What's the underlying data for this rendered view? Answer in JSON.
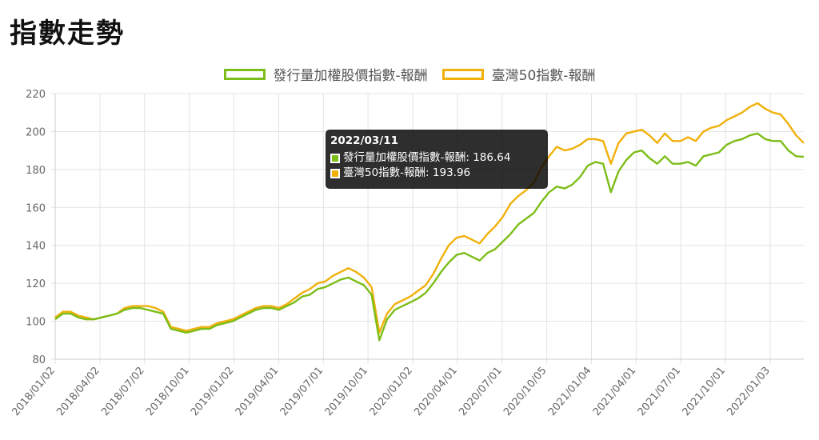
{
  "page": {
    "title": "指數走勢"
  },
  "chart_data": {
    "type": "line",
    "yticks": [
      80,
      100,
      120,
      140,
      160,
      180,
      200,
      220
    ],
    "ylim": [
      80,
      220
    ],
    "x_tick_labels": [
      "2018/01/02",
      "2018/04/02",
      "2018/07/02",
      "2018/10/01",
      "2019/01/02",
      "2019/04/01",
      "2019/07/01",
      "2019/10/01",
      "2020/01/02",
      "2020/04/01",
      "2020/07/01",
      "2020/10/05",
      "2021/01/04",
      "2021/04/01",
      "2021/07/01",
      "2021/10/01",
      "2022/01/03"
    ],
    "grid": true,
    "legend_position": "top-center",
    "series": [
      {
        "name": "發行量加權股價指數-報酬",
        "color": "#7cbd18",
        "values": [
          101,
          104,
          104,
          102,
          101,
          101,
          102,
          103,
          104,
          106,
          107,
          107,
          106,
          105,
          104,
          96,
          95,
          94,
          95,
          96,
          96,
          98,
          99,
          100,
          102,
          104,
          106,
          107,
          107,
          106,
          108,
          110,
          113,
          114,
          117,
          118,
          120,
          122,
          123,
          121,
          119,
          114,
          90,
          101,
          106,
          108,
          110,
          112,
          115,
          120,
          126,
          131,
          135,
          136,
          134,
          132,
          136,
          138,
          142,
          146,
          151,
          154,
          157,
          163,
          168,
          171,
          170,
          172,
          176,
          182,
          184,
          183,
          168,
          179,
          185,
          189,
          190,
          186,
          183,
          187,
          183,
          183,
          184,
          182,
          187,
          188,
          189,
          193,
          195,
          196,
          198,
          199,
          196,
          195,
          195,
          190,
          187,
          186.64
        ]
      },
      {
        "name": "臺灣50指數-報酬",
        "color": "#f1b00a",
        "values": [
          102,
          105,
          105,
          103,
          102,
          101,
          102,
          103,
          104,
          107,
          108,
          108,
          108,
          107,
          105,
          97,
          96,
          95,
          96,
          97,
          97,
          99,
          100,
          101,
          103,
          105,
          107,
          108,
          108,
          107,
          109,
          112,
          115,
          117,
          120,
          121,
          124,
          126,
          128,
          126,
          123,
          118,
          94,
          104,
          109,
          111,
          113,
          116,
          119,
          125,
          133,
          140,
          144,
          145,
          143,
          141,
          146,
          150,
          155,
          162,
          166,
          169,
          173,
          181,
          187,
          192,
          190,
          191,
          193,
          196,
          196,
          195,
          183,
          194,
          199,
          200,
          201,
          198,
          194,
          199,
          195,
          195,
          197,
          195,
          200,
          202,
          203,
          206,
          208,
          210,
          213,
          215,
          212,
          210,
          209,
          204,
          198,
          193.96
        ]
      }
    ]
  },
  "tooltip": {
    "date": "2022/03/11",
    "rows": [
      {
        "label": "發行量加權股價指數-報酬: 186.64"
      },
      {
        "label": "臺灣50指數-報酬: 193.96"
      }
    ]
  }
}
